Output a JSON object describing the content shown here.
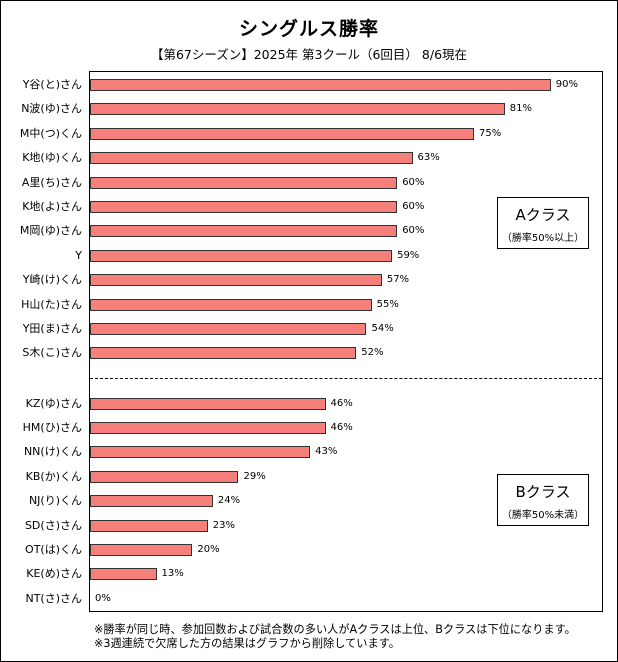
{
  "title": "シングルス勝率",
  "subtitle": "【第67シーズン】2025年 第3クール（6回目） 8/6現在",
  "class_a": {
    "name": "Aクラス",
    "note": "（勝率50%以上）"
  },
  "class_b": {
    "name": "Bクラス",
    "note": "（勝率50%未満）"
  },
  "notes": [
    "※勝率が同じ時、参加回数および試合数の多い人がAクラスは上位、Bクラスは下位になります。",
    "※3週連続で欠席した方の結果はグラフから削除しています。"
  ],
  "chart_data": {
    "type": "bar",
    "orientation": "horizontal",
    "title": "シングルス勝率",
    "subtitle": "【第67シーズン】2025年 第3クール（6回目） 8/6現在",
    "xlim": [
      0,
      100
    ],
    "grid": false,
    "categories": [
      "Y谷(と)さん",
      "N波(ゆ)さん",
      "M中(つ)くん",
      "K地(ゆ)くん",
      "A里(ち)さん",
      "K地(よ)さん",
      "M岡(ゆ)さん",
      "Y",
      "Y崎(け)くん",
      "H山(た)さん",
      "Y田(ま)さん",
      "S木(こ)さん",
      "KZ(ゆ)さん",
      "HM(ひ)さん",
      "NN(け)くん",
      "KB(か)くん",
      "NJ(り)くん",
      "SD(さ)さん",
      "OT(は)くん",
      "KE(め)さん",
      "NT(さ)さん"
    ],
    "values": [
      90,
      81,
      75,
      63,
      60,
      60,
      60,
      59,
      57,
      55,
      54,
      52,
      46,
      46,
      43,
      29,
      24,
      23,
      20,
      13,
      0
    ],
    "value_labels": [
      "90%",
      "81%",
      "75%",
      "63%",
      "60%",
      "60%",
      "60%",
      "59%",
      "57%",
      "55%",
      "54%",
      "52%",
      "46%",
      "46%",
      "43%",
      "29%",
      "24%",
      "23%",
      "20%",
      "13%",
      "0%"
    ],
    "groups": [
      {
        "name": "Aクラス",
        "start": 0,
        "end": 11
      },
      {
        "name": "Bクラス",
        "start": 12,
        "end": 20
      }
    ],
    "bar_color": "#f47f7b"
  }
}
